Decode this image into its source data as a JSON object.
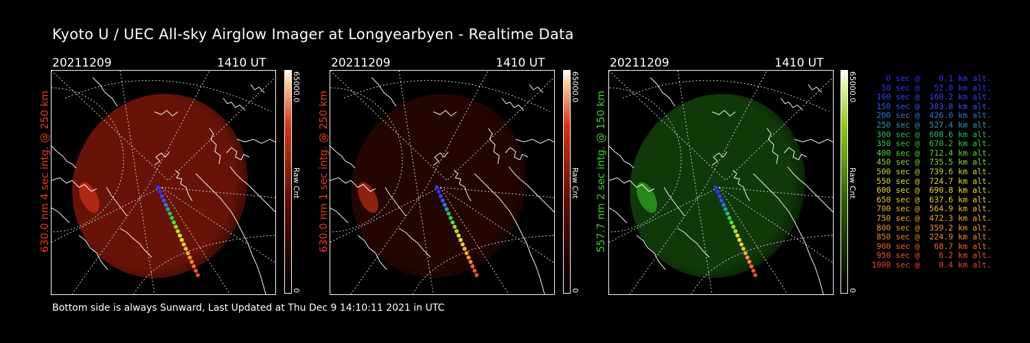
{
  "title": "Kyoto U / UEC All-sky Airglow Imager at Longyearbyen - Realtime Data",
  "footer": "Bottom side is always Sunward, Last Updated at Thu Dec  9 14:10:11 2021 in UTC",
  "panels": [
    {
      "date": "20211209",
      "time": "1410 UT",
      "side_label": "630.0 nm 4 sec intg. @ 250 km",
      "label_color": "#e83a1c",
      "cbar_max": "65000.0",
      "cbar_min": "0",
      "cbar_unit": "Raw Cnt",
      "glow": "#7a1608",
      "glow_strength": 0.85
    },
    {
      "date": "20211209",
      "time": "1410 UT",
      "side_label": "630.0 nm 1 sec intg. @ 250 km",
      "label_color": "#e83a1c",
      "cbar_max": "65000.0",
      "cbar_min": "0",
      "cbar_unit": "Raw Cnt",
      "glow": "#3a0804",
      "glow_strength": 0.6
    },
    {
      "date": "20211209",
      "time": "1410 UT",
      "side_label": "557.7 nm 2 sec intg. @ 150 km",
      "label_color": "#3ccc2c",
      "cbar_max": "65000.0",
      "cbar_min": "0",
      "cbar_unit": "Raw Cnt",
      "glow": "#154a0c",
      "glow_strength": 0.75
    }
  ],
  "legend": [
    {
      "text": "   0 sec @    0.1 km alt.",
      "color": "#3333ff"
    },
    {
      "text": "  50 sec @   52.0 km alt.",
      "color": "#3333ff"
    },
    {
      "text": " 100 sec @  160.2 km alt.",
      "color": "#3344ff"
    },
    {
      "text": " 150 sec @  303.8 km alt.",
      "color": "#3355ee"
    },
    {
      "text": " 200 sec @  426.0 km alt.",
      "color": "#3377dd"
    },
    {
      "text": " 250 sec @  527.4 km alt.",
      "color": "#3399aa"
    },
    {
      "text": " 300 sec @  608.6 km alt.",
      "color": "#33bb66"
    },
    {
      "text": " 350 sec @  670.2 km alt.",
      "color": "#33cc44"
    },
    {
      "text": " 400 sec @  712.4 km alt.",
      "color": "#55dd33"
    },
    {
      "text": " 450 sec @  735.5 km alt.",
      "color": "#88dd33"
    },
    {
      "text": " 500 sec @  739.6 km alt.",
      "color": "#bbdd33"
    },
    {
      "text": " 550 sec @  724.7 km alt.",
      "color": "#dddd33"
    },
    {
      "text": " 600 sec @  690.8 km alt.",
      "color": "#eedd33"
    },
    {
      "text": " 650 sec @  637.6 km alt.",
      "color": "#eecc33"
    },
    {
      "text": " 700 sec @  564.9 km alt.",
      "color": "#eebb33"
    },
    {
      "text": " 750 sec @  472.3 km alt.",
      "color": "#eeaa33"
    },
    {
      "text": " 800 sec @  359.2 km alt.",
      "color": "#ee9933"
    },
    {
      "text": " 850 sec @  224.9 km alt.",
      "color": "#ee8833"
    },
    {
      "text": " 900 sec @   68.7 km alt.",
      "color": "#ee6633"
    },
    {
      "text": " 950 sec @    6.2 km alt.",
      "color": "#ee5533"
    },
    {
      "text": "1000 sec @    0.4 km alt.",
      "color": "#ee4433"
    }
  ]
}
